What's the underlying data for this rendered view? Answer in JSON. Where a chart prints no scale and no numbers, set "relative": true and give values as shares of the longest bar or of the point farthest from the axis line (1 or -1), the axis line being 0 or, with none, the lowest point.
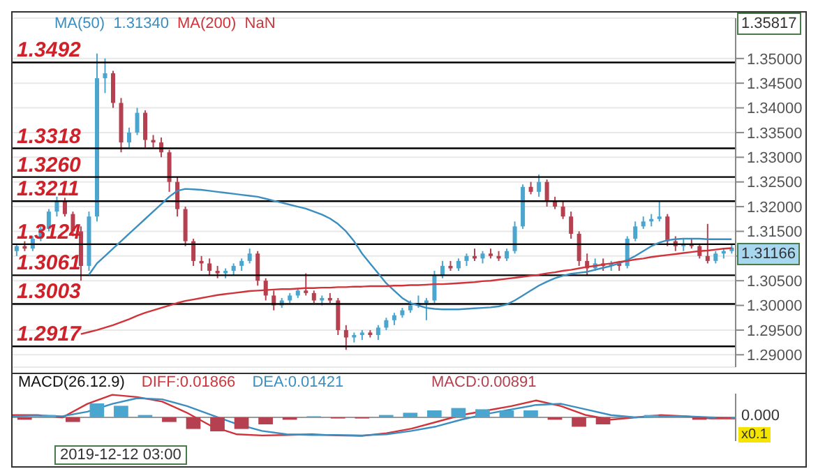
{
  "chart_data": [
    {
      "type": "candlestick",
      "categories": [
        null,
        null,
        null,
        null,
        null,
        null,
        null,
        null,
        null,
        null,
        null,
        null,
        null,
        null,
        null,
        null,
        null,
        null,
        null,
        null,
        null,
        null,
        null,
        null,
        null,
        null,
        null,
        null,
        null,
        null,
        null,
        null,
        null,
        null,
        null,
        null,
        null,
        null,
        null,
        null,
        null,
        null,
        null,
        null,
        null,
        null,
        null,
        null,
        null,
        null,
        null,
        null,
        null,
        null,
        null,
        null,
        null,
        null,
        null,
        null,
        null,
        null,
        null,
        null,
        null,
        null,
        null,
        null,
        null,
        null,
        null,
        null,
        null,
        null,
        null,
        null,
        null,
        null,
        null,
        null,
        null,
        null,
        null,
        null,
        null,
        null,
        null,
        null,
        null,
        null
      ],
      "ohlc": [
        [
          1.311,
          1.3125,
          1.31,
          1.312
        ],
        [
          1.312,
          1.313,
          1.311,
          1.3115
        ],
        [
          1.3115,
          1.314,
          1.311,
          1.3135
        ],
        [
          1.3135,
          1.316,
          1.313,
          1.3155
        ],
        [
          1.3155,
          1.3195,
          1.315,
          1.319
        ],
        [
          1.319,
          1.322,
          1.318,
          1.321
        ],
        [
          1.321,
          1.3218,
          1.318,
          1.3185
        ],
        [
          1.3185,
          1.319,
          1.314,
          1.315
        ],
        [
          1.315,
          1.316,
          1.305,
          1.308
        ],
        [
          1.308,
          1.319,
          1.307,
          1.318
        ],
        [
          1.318,
          1.351,
          1.317,
          1.346
        ],
        [
          1.346,
          1.35,
          1.343,
          1.347
        ],
        [
          1.347,
          1.3475,
          1.34,
          1.341
        ],
        [
          1.341,
          1.342,
          1.331,
          1.333
        ],
        [
          1.333,
          1.336,
          1.332,
          1.335
        ],
        [
          1.335,
          1.34,
          1.3345,
          1.339
        ],
        [
          1.339,
          1.3395,
          1.332,
          1.3335
        ],
        [
          1.3335,
          1.3345,
          1.332,
          1.333
        ],
        [
          1.333,
          1.334,
          1.33,
          1.331
        ],
        [
          1.331,
          1.3315,
          1.323,
          1.325
        ],
        [
          1.325,
          1.326,
          1.318,
          1.3195
        ],
        [
          1.3195,
          1.32,
          1.312,
          1.313
        ],
        [
          1.313,
          1.3135,
          1.308,
          1.309
        ],
        [
          1.309,
          1.31,
          1.307,
          1.3085
        ],
        [
          1.3085,
          1.3095,
          1.306,
          1.307
        ],
        [
          1.307,
          1.308,
          1.3055,
          1.3065
        ],
        [
          1.3065,
          1.3075,
          1.3055,
          1.307
        ],
        [
          1.307,
          1.3085,
          1.306,
          1.308
        ],
        [
          1.308,
          1.3095,
          1.307,
          1.309
        ],
        [
          1.309,
          1.3115,
          1.3085,
          1.3105
        ],
        [
          1.3105,
          1.311,
          1.304,
          1.305
        ],
        [
          1.305,
          1.3055,
          1.301,
          1.302
        ],
        [
          1.302,
          1.303,
          1.299,
          1.3
        ],
        [
          1.3,
          1.3015,
          1.2995,
          1.301
        ],
        [
          1.301,
          1.3025,
          1.3005,
          1.302
        ],
        [
          1.302,
          1.3035,
          1.3015,
          1.303
        ],
        [
          1.303,
          1.3065,
          1.302,
          1.3025
        ],
        [
          1.3025,
          1.303,
          1.3005,
          1.301
        ],
        [
          1.301,
          1.302,
          1.3,
          1.3015
        ],
        [
          1.3015,
          1.3025,
          1.3005,
          1.301
        ],
        [
          1.301,
          1.3015,
          1.294,
          1.295
        ],
        [
          1.295,
          1.296,
          1.291,
          1.2935
        ],
        [
          1.2935,
          1.2945,
          1.2925,
          1.294
        ],
        [
          1.294,
          1.295,
          1.293,
          1.2945
        ],
        [
          1.2945,
          1.295,
          1.2935,
          1.294
        ],
        [
          1.294,
          1.296,
          1.293,
          1.2955
        ],
        [
          1.2955,
          1.2975,
          1.295,
          1.297
        ],
        [
          1.297,
          1.2985,
          1.296,
          1.298
        ],
        [
          1.298,
          1.2995,
          1.2975,
          1.299
        ],
        [
          1.299,
          1.301,
          1.2985,
          1.3
        ],
        [
          1.3,
          1.302,
          1.2995,
          1.3005
        ],
        [
          1.3005,
          1.3015,
          1.297,
          1.301
        ],
        [
          1.301,
          1.307,
          1.3005,
          1.306
        ],
        [
          1.306,
          1.309,
          1.3055,
          1.308
        ],
        [
          1.308,
          1.309,
          1.307,
          1.3075
        ],
        [
          1.3075,
          1.3095,
          1.307,
          1.309
        ],
        [
          1.309,
          1.3105,
          1.308,
          1.31
        ],
        [
          1.31,
          1.3115,
          1.309,
          1.3095
        ],
        [
          1.3095,
          1.311,
          1.3085,
          1.3105
        ],
        [
          1.3105,
          1.3115,
          1.3095,
          1.31
        ],
        [
          1.31,
          1.311,
          1.309,
          1.3095
        ],
        [
          1.3095,
          1.3115,
          1.309,
          1.311
        ],
        [
          1.311,
          1.317,
          1.3105,
          1.316
        ],
        [
          1.316,
          1.3245,
          1.3155,
          1.324
        ],
        [
          1.324,
          1.325,
          1.3225,
          1.323
        ],
        [
          1.323,
          1.3265,
          1.322,
          1.325
        ],
        [
          1.325,
          1.3255,
          1.32,
          1.321
        ],
        [
          1.321,
          1.322,
          1.3195,
          1.32
        ],
        [
          1.32,
          1.321,
          1.3175,
          1.318
        ],
        [
          1.318,
          1.319,
          1.3135,
          1.3145
        ],
        [
          1.3145,
          1.315,
          1.308,
          1.309
        ],
        [
          1.309,
          1.3105,
          1.306,
          1.3075
        ],
        [
          1.3075,
          1.3095,
          1.307,
          1.3085
        ],
        [
          1.3085,
          1.3095,
          1.307,
          1.308
        ],
        [
          1.308,
          1.309,
          1.307,
          1.3085
        ],
        [
          1.3085,
          1.309,
          1.307,
          1.308
        ],
        [
          1.308,
          1.314,
          1.3075,
          1.3135
        ],
        [
          1.3135,
          1.317,
          1.313,
          1.316
        ],
        [
          1.316,
          1.318,
          1.3155,
          1.317
        ],
        [
          1.317,
          1.3185,
          1.316,
          1.3175
        ],
        [
          1.3175,
          1.321,
          1.317,
          1.318
        ],
        [
          1.318,
          1.3185,
          1.312,
          1.313
        ],
        [
          1.313,
          1.314,
          1.311,
          1.312
        ],
        [
          1.312,
          1.3135,
          1.311,
          1.3125
        ],
        [
          1.3125,
          1.3135,
          1.3115,
          1.312
        ],
        [
          1.312,
          1.3125,
          1.3095,
          1.31
        ],
        [
          1.31,
          1.3165,
          1.3085,
          1.309
        ],
        [
          1.309,
          1.311,
          1.3085,
          1.3105
        ],
        [
          1.3105,
          1.3115,
          1.3095,
          1.311
        ],
        [
          1.311,
          1.3125,
          1.3105,
          1.3117
        ]
      ],
      "colors": [
        "#4aa6cf",
        "#b5404f",
        "#4aa6cf",
        "#4aa6cf",
        "#4aa6cf",
        "#4aa6cf",
        "#b5404f",
        "#b5404f",
        "#b5404f",
        "#4aa6cf",
        "#4aa6cf",
        "#4aa6cf",
        "#b5404f",
        "#b5404f",
        "#4aa6cf",
        "#4aa6cf",
        "#b5404f",
        "#b5404f",
        "#b5404f",
        "#b5404f",
        "#b5404f",
        "#b5404f",
        "#b5404f",
        "#b5404f",
        "#b5404f",
        "#b5404f",
        "#4aa6cf",
        "#4aa6cf",
        "#4aa6cf",
        "#4aa6cf",
        "#b5404f",
        "#b5404f",
        "#b5404f",
        "#4aa6cf",
        "#4aa6cf",
        "#4aa6cf",
        "#b5404f",
        "#b5404f",
        "#4aa6cf",
        "#b5404f",
        "#b5404f",
        "#b5404f",
        "#4aa6cf",
        "#4aa6cf",
        "#b5404f",
        "#4aa6cf",
        "#4aa6cf",
        "#4aa6cf",
        "#4aa6cf",
        "#4aa6cf",
        "#4aa6cf",
        "#4aa6cf",
        "#4aa6cf",
        "#4aa6cf",
        "#b5404f",
        "#4aa6cf",
        "#4aa6cf",
        "#b5404f",
        "#4aa6cf",
        "#b5404f",
        "#b5404f",
        "#4aa6cf",
        "#4aa6cf",
        "#4aa6cf",
        "#b5404f",
        "#4aa6cf",
        "#b5404f",
        "#b5404f",
        "#b5404f",
        "#b5404f",
        "#b5404f",
        "#b5404f",
        "#4aa6cf",
        "#b5404f",
        "#4aa6cf",
        "#b5404f",
        "#4aa6cf",
        "#4aa6cf",
        "#4aa6cf",
        "#4aa6cf",
        "#4aa6cf",
        "#b5404f",
        "#b5404f",
        "#4aa6cf",
        "#b5404f",
        "#b5404f",
        "#b5404f",
        "#4aa6cf",
        "#4aa6cf",
        "#4aa6cf"
      ],
      "series": [
        {
          "name": "MA(50)",
          "type": "line",
          "color": "#3b8fc0",
          "values": [
            null,
            null,
            null,
            null,
            null,
            null,
            null,
            null,
            null,
            1.3062,
            1.3085,
            1.31,
            1.3115,
            1.313,
            1.3145,
            1.316,
            1.3175,
            1.319,
            1.3205,
            1.322,
            1.3232,
            1.3236,
            1.3235,
            1.3234,
            1.3232,
            1.323,
            1.3228,
            1.3226,
            1.3224,
            1.3222,
            1.322,
            1.3216,
            1.3212,
            1.3208,
            1.3204,
            1.32,
            1.3196,
            1.319,
            1.3184,
            1.3176,
            1.3165,
            1.315,
            1.313,
            1.3105,
            1.3085,
            1.3065,
            1.3045,
            1.303,
            1.3015,
            1.3005,
            1.3,
            1.2995,
            1.2993,
            1.2992,
            1.2992,
            1.2992,
            1.2993,
            1.2994,
            1.2995,
            1.2996,
            1.2998,
            1.3002,
            1.301,
            1.302,
            1.303,
            1.304,
            1.3048,
            1.3055,
            1.306,
            1.3064,
            1.3066,
            1.3068,
            1.3072,
            1.3076,
            1.308,
            1.3085,
            1.3092,
            1.31,
            1.311,
            1.312,
            1.3127,
            1.3132,
            1.3134,
            1.3135,
            1.3135,
            1.3135,
            1.3134,
            1.3134,
            1.3134,
            1.3134
          ]
        },
        {
          "name": "MA(200)",
          "type": "line",
          "color": "#d0343a",
          "values": [
            null,
            null,
            null,
            null,
            null,
            null,
            null,
            null,
            1.2942,
            1.2946,
            1.295,
            1.2955,
            1.296,
            1.2966,
            1.2972,
            1.2979,
            1.2985,
            1.299,
            1.2995,
            1.3,
            1.3005,
            1.3009,
            1.3012,
            1.3015,
            1.3018,
            1.3021,
            1.3023,
            1.3025,
            1.3027,
            1.3029,
            1.303,
            1.3031,
            1.3032,
            1.3033,
            1.3033,
            1.3034,
            1.3035,
            1.3035,
            1.3036,
            1.3036,
            1.3037,
            1.3037,
            1.3038,
            1.3038,
            1.3039,
            1.3039,
            1.3039,
            1.304,
            1.304,
            1.3041,
            1.3041,
            1.3042,
            1.3043,
            1.3043,
            1.3044,
            1.3045,
            1.3046,
            1.3047,
            1.3049,
            1.305,
            1.3052,
            1.3054,
            1.3056,
            1.3058,
            1.306,
            1.3062,
            1.3065,
            1.3067,
            1.307,
            1.3072,
            1.3075,
            1.3078,
            1.308,
            1.3083,
            1.3085,
            1.3088,
            1.309,
            1.3093,
            1.3095,
            1.3098,
            1.31,
            1.3102,
            1.3104,
            1.3106,
            1.3108,
            1.311,
            1.3111,
            1.3113,
            1.3115,
            1.3116
          ]
        }
      ],
      "ylim": [
        1.2875,
        1.35817
      ],
      "yticks": [
        {
          "value": 1.29,
          "label": "1.29000"
        },
        {
          "value": 1.295,
          "label": "1.29500"
        },
        {
          "value": 1.3,
          "label": "1.30000"
        },
        {
          "value": 1.305,
          "label": "1.30500"
        },
        {
          "value": 1.31,
          "label": null
        },
        {
          "value": 1.315,
          "label": "1.31500"
        },
        {
          "value": 1.32,
          "label": "1.32000"
        },
        {
          "value": 1.325,
          "label": "1.32500"
        },
        {
          "value": 1.33,
          "label": "1.33000"
        },
        {
          "value": 1.335,
          "label": "1.33500"
        },
        {
          "value": 1.34,
          "label": "1.34000"
        },
        {
          "value": 1.345,
          "label": "1.34500"
        },
        {
          "value": 1.35,
          "label": "1.35000"
        }
      ],
      "grid": "y",
      "tick_labels": "y",
      "legend": "top left",
      "ref_lines": [
        {
          "axis": "y",
          "value": 1.3492,
          "label": "1.3492",
          "color": "#000000"
        },
        {
          "axis": "y",
          "value": 1.3318,
          "label": "1.3318",
          "color": "#000000"
        },
        {
          "axis": "y",
          "value": 1.326,
          "label": "1.3260",
          "color": "#000000"
        },
        {
          "axis": "y",
          "value": 1.3211,
          "label": "1.3211",
          "color": "#000000"
        },
        {
          "axis": "y",
          "value": 1.3124,
          "label": "1.3124",
          "color": "#000000"
        },
        {
          "axis": "y",
          "value": 1.3061,
          "label": "1.3061",
          "color": "#000000"
        },
        {
          "axis": "y",
          "value": 1.3003,
          "label": "1.3003",
          "color": "#000000"
        },
        {
          "axis": "y",
          "value": 1.2917,
          "label": "1.2917",
          "color": "#000000"
        }
      ],
      "annotations": [
        "1.31340",
        "NaN",
        "1.35817",
        "1.31166"
      ]
    },
    {
      "type": "line",
      "title": "MACD(26.12.9)",
      "relative": true,
      "categories": [
        null,
        null,
        null,
        null,
        null,
        null,
        null,
        null,
        null,
        null,
        null,
        null,
        null,
        null,
        null,
        null,
        null,
        null,
        null,
        null,
        null,
        null,
        null,
        null,
        null,
        null,
        null,
        null,
        null,
        null
      ],
      "series": [
        {
          "name": "DIFF:0.01866",
          "type": "line",
          "color": "#d0343a",
          "values": [
            0.1,
            0.1,
            0.0,
            0.6,
            1.0,
            0.9,
            0.7,
            0.2,
            -0.4,
            -0.75,
            -0.8,
            -0.78,
            -0.75,
            -0.8,
            -0.82,
            -0.7,
            -0.5,
            -0.2,
            0.1,
            0.3,
            0.5,
            0.75,
            0.5,
            0.1,
            -0.1,
            0.0,
            0.1,
            0.05,
            -0.05,
            -0.05
          ]
        },
        {
          "name": "DEA:0.01421",
          "type": "line",
          "color": "#3b8fc0",
          "values": [
            0.05,
            0.08,
            0.05,
            0.25,
            0.6,
            0.85,
            0.8,
            0.5,
            0.1,
            -0.3,
            -0.6,
            -0.75,
            -0.78,
            -0.78,
            -0.8,
            -0.75,
            -0.6,
            -0.4,
            -0.1,
            0.15,
            0.35,
            0.55,
            0.6,
            0.35,
            0.1,
            0.0,
            0.05,
            0.05,
            0.0,
            -0.03
          ]
        }
      ],
      "annotations": [
        "0.000",
        "x0.1",
        "2019-12-12 03:00"
      ]
    },
    {
      "type": "bar",
      "relative": true,
      "categories": [
        null,
        null,
        null,
        null,
        null,
        null,
        null,
        null,
        null,
        null,
        null,
        null,
        null,
        null,
        null,
        null,
        null,
        null,
        null,
        null,
        null,
        null,
        null,
        null,
        null,
        null,
        null,
        null,
        null,
        null
      ],
      "series": [
        {
          "name": "MACD:0.00891",
          "color": "#b5404f",
          "colors": [
            "#b5404f",
            "#4aa6cf",
            "#b5404f",
            "#4aa6cf",
            "#4aa6cf",
            "#4aa6cf",
            "#b5404f",
            "#b5404f",
            "#b5404f",
            "#b5404f",
            "#b5404f",
            "#b5404f",
            "#4aa6cf",
            "#b5404f",
            "#b5404f",
            "#4aa6cf",
            "#4aa6cf",
            "#4aa6cf",
            "#4aa6cf",
            "#4aa6cf",
            "#4aa6cf",
            "#4aa6cf",
            "#b5404f",
            "#b5404f",
            "#b5404f",
            "#4aa6cf",
            "#4aa6cf",
            "#4aa6cf",
            "#b5404f",
            "#b5404f"
          ],
          "values": [
            -0.17,
            0.17,
            -0.33,
            1,
            0.83,
            0.17,
            -0.33,
            -0.83,
            -1,
            -0.83,
            -0.5,
            -0.17,
            0.08,
            -0.08,
            -0.08,
            0.17,
            0.33,
            0.5,
            0.67,
            0.58,
            0.5,
            0.5,
            -0.17,
            -0.67,
            -0.5,
            0.03,
            0.17,
            0.03,
            -0.17,
            -0.08
          ]
        }
      ]
    }
  ]
}
